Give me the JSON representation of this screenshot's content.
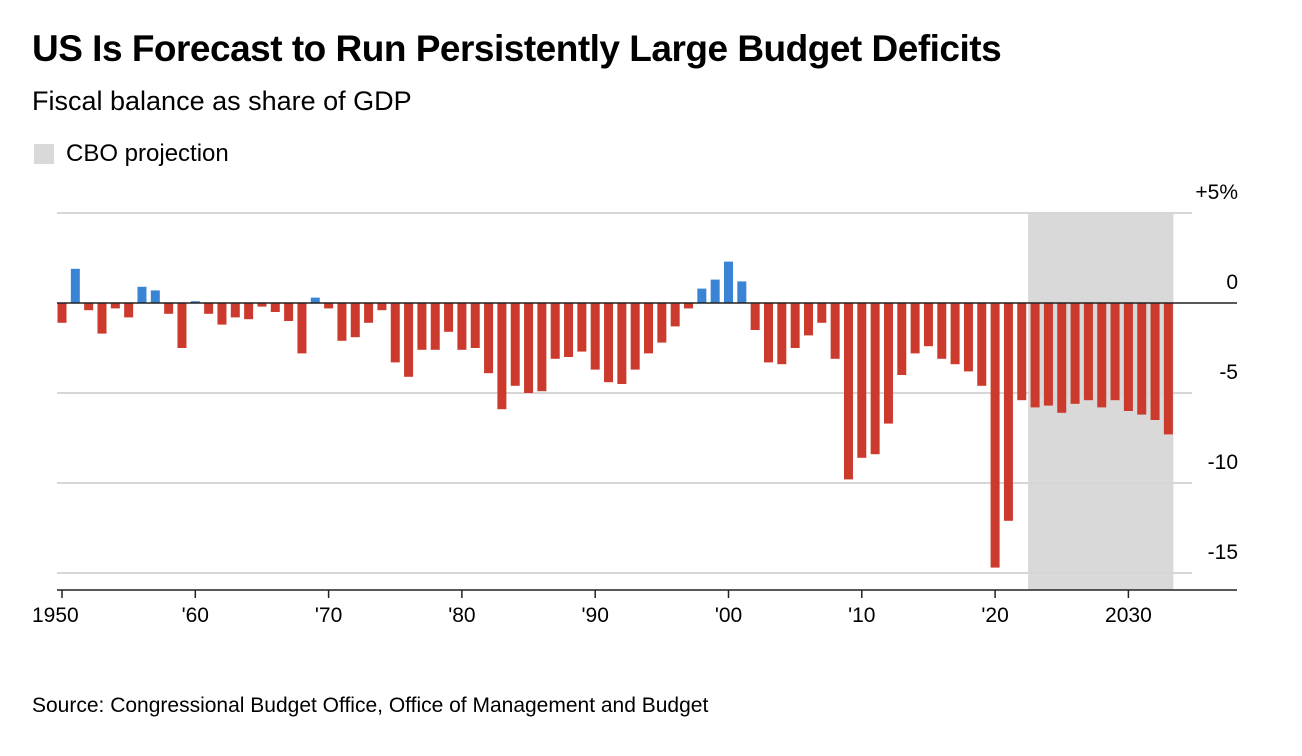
{
  "title": "US Is Forecast to Run Persistently Large Budget Deficits",
  "subtitle": "Fiscal balance as share of GDP",
  "legend_label": "CBO projection",
  "source": "Source: Congressional Budget Office, Office of Management and Budget",
  "colors": {
    "surplus": "#3a84d6",
    "deficit": "#cc3a2d",
    "projection": "#d9d9d9"
  },
  "chart_data": {
    "type": "bar",
    "title": "US Is Forecast to Run Persistently Large Budget Deficits",
    "ylabel": "Fiscal balance as share of GDP",
    "ylim": [
      -16,
      5
    ],
    "y_ticks": [
      5,
      0,
      -5,
      -10,
      -15
    ],
    "y_tick_labels": [
      "+5%",
      "0",
      "-5",
      "-10",
      "-15"
    ],
    "x_ticks": [
      1950,
      1960,
      1970,
      1980,
      1990,
      2000,
      2010,
      2020,
      2030
    ],
    "x_tick_labels": [
      "1950",
      "'60",
      "'70",
      "'80",
      "'90",
      "'00",
      "'10",
      "'20",
      "2030"
    ],
    "projection_range": [
      2023,
      2033
    ],
    "start_year": 1950,
    "values": [
      -1.1,
      1.9,
      -0.4,
      -1.7,
      -0.3,
      -0.8,
      0.9,
      0.7,
      -0.6,
      -2.5,
      0.1,
      -0.6,
      -1.2,
      -0.8,
      -0.9,
      -0.2,
      -0.5,
      -1.0,
      -2.8,
      0.3,
      -0.3,
      -2.1,
      -1.9,
      -1.1,
      -0.4,
      -3.3,
      -4.1,
      -2.6,
      -2.6,
      -1.6,
      -2.6,
      -2.5,
      -3.9,
      -5.9,
      -4.6,
      -5.0,
      -4.9,
      -3.1,
      -3.0,
      -2.7,
      -3.7,
      -4.4,
      -4.5,
      -3.7,
      -2.8,
      -2.2,
      -1.3,
      -0.3,
      0.8,
      1.3,
      2.3,
      1.2,
      -1.5,
      -3.3,
      -3.4,
      -2.5,
      -1.8,
      -1.1,
      -3.1,
      -9.8,
      -8.6,
      -8.4,
      -6.7,
      -4.0,
      -2.8,
      -2.4,
      -3.1,
      -3.4,
      -3.8,
      -4.6,
      -14.7,
      -12.1,
      -5.4,
      -5.8,
      -5.7,
      -6.1,
      -5.6,
      -5.4,
      -5.8,
      -5.4,
      -6.0,
      -6.2,
      -6.5,
      -7.3
    ]
  }
}
